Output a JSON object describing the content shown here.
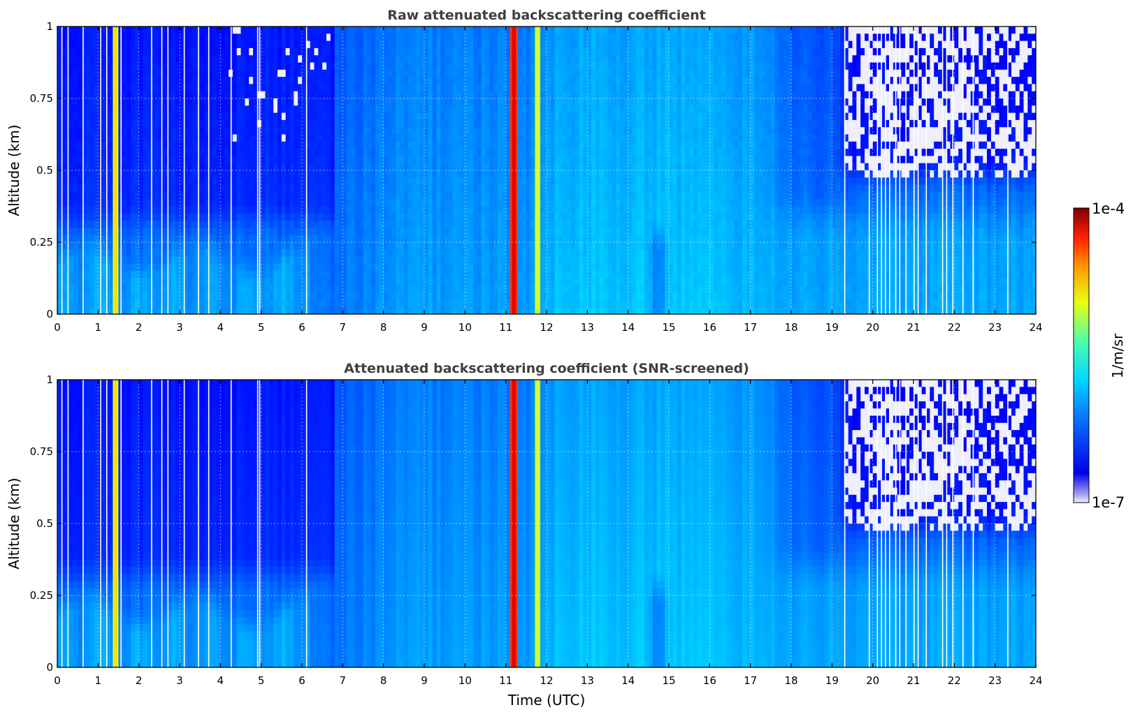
{
  "chart_data": [
    {
      "type": "heatmap",
      "title": "Raw attenuated backscattering coefficient",
      "xlabel": "",
      "ylabel": "Altitude (km)",
      "xlim": [
        0,
        24
      ],
      "ylim": [
        0,
        1
      ],
      "xticks": [
        "0",
        "1",
        "2",
        "3",
        "4",
        "5",
        "6",
        "7",
        "8",
        "9",
        "10",
        "11",
        "12",
        "13",
        "14",
        "15",
        "16",
        "17",
        "18",
        "19",
        "20",
        "21",
        "22",
        "23",
        "24"
      ],
      "yticks": [
        "0",
        "0.25",
        "0.5",
        "0.75",
        "1"
      ],
      "grid": true,
      "screened": false,
      "features": [
        {
          "kind": "strong_column",
          "t": 1.43,
          "level": "yellow"
        },
        {
          "kind": "strong_column",
          "t": 11.2,
          "level": "red"
        },
        {
          "kind": "strong_column",
          "t": 11.78,
          "level": "yellow-green"
        },
        {
          "kind": "boundary_layer",
          "t_range": [
            0,
            6
          ],
          "top_km": 0.2
        },
        {
          "kind": "low_signal_region",
          "t_range": [
            19,
            24
          ],
          "alt_km": [
            0.45,
            1
          ]
        }
      ]
    },
    {
      "type": "heatmap",
      "title": "Attenuated backscattering coefficient (SNR-screened)",
      "xlabel": "Time (UTC)",
      "ylabel": "Altitude (km)",
      "xlim": [
        0,
        24
      ],
      "ylim": [
        0,
        1
      ],
      "xticks": [
        "0",
        "1",
        "2",
        "3",
        "4",
        "5",
        "6",
        "7",
        "8",
        "9",
        "10",
        "11",
        "12",
        "13",
        "14",
        "15",
        "16",
        "17",
        "18",
        "19",
        "20",
        "21",
        "22",
        "23",
        "24"
      ],
      "yticks": [
        "0",
        "0.25",
        "0.5",
        "0.75",
        "1"
      ],
      "grid": true,
      "screened": true,
      "features": [
        {
          "kind": "strong_column",
          "t": 1.43,
          "level": "yellow"
        },
        {
          "kind": "strong_column",
          "t": 11.2,
          "level": "red"
        },
        {
          "kind": "strong_column",
          "t": 11.78,
          "level": "yellow-green"
        },
        {
          "kind": "boundary_layer",
          "t_range": [
            0,
            6
          ],
          "top_km": 0.2
        },
        {
          "kind": "low_signal_region",
          "t_range": [
            19,
            24
          ],
          "alt_km": [
            0.45,
            1
          ]
        }
      ]
    }
  ],
  "colorbar": {
    "label": "1/m/sr",
    "max_label": "1e-4",
    "min_label": "1e-7",
    "range": [
      1e-07,
      0.0001
    ],
    "scale": "log",
    "colormap": "jet",
    "low_color": "#eeeefc"
  },
  "gap_times": [
    0.1,
    0.25,
    0.62,
    1.05,
    1.2,
    1.55,
    2.3,
    2.55,
    2.7,
    3.1,
    3.45,
    3.7,
    4.25,
    4.9,
    4.95,
    6.1,
    19.3,
    19.9,
    20.1,
    20.2,
    20.3,
    20.4,
    20.55,
    20.65,
    20.8,
    21.0,
    21.1,
    21.3,
    21.7,
    21.8,
    21.95,
    22.2,
    22.45,
    23.3
  ]
}
